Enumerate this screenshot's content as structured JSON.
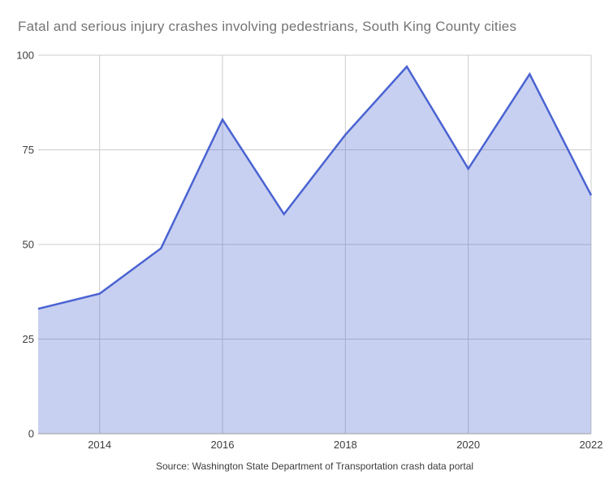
{
  "chart_data": {
    "type": "area",
    "title": "Fatal and serious injury crashes involving pedestrians, South King County cities",
    "source": "Source: Washington State Department of Transportation crash data portal",
    "x": [
      2013,
      2014,
      2015,
      2016,
      2017,
      2018,
      2019,
      2020,
      2021,
      2022
    ],
    "values": [
      33,
      37,
      49,
      83,
      58,
      79,
      97,
      70,
      95,
      63
    ],
    "xlabel": "",
    "ylabel": "",
    "ylim": [
      0,
      100
    ],
    "xlim": [
      2013,
      2022
    ],
    "y_ticks": [
      0,
      25,
      50,
      75,
      100
    ],
    "x_tick_labels": [
      "2014",
      "2016",
      "2018",
      "2020",
      "2022"
    ],
    "x_tick_values": [
      2014,
      2016,
      2018,
      2020,
      2022
    ],
    "grid": true,
    "legend": false,
    "colors": {
      "line": "#4a63d2",
      "fill": "#4a63d2",
      "fill_opacity": 0.3,
      "gridline": "#cccccc",
      "axis_line": "#9e9e9e",
      "tick_label": "#3c3c3c",
      "title": "#757575",
      "background": "#ffffff"
    }
  }
}
